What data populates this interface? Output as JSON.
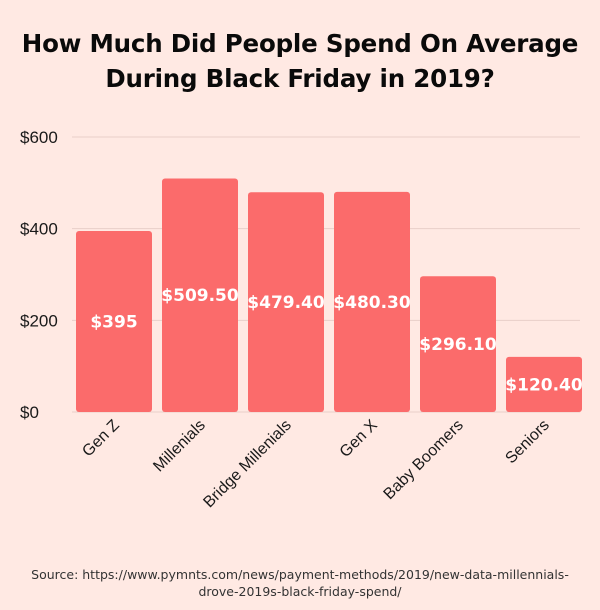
{
  "title_lines": [
    "How Much Did People Spend On Average",
    "During Black Friday in 2019?"
  ],
  "source_lines": [
    "Source: https://www.pymnts.com/news/payment-methods/2019/new-data-millennials-",
    "drove-2019s-black-friday-spend/"
  ],
  "colors": {
    "bar": "#fb6b6b",
    "grid": "#e8cfc8",
    "background": "#ffe9e3",
    "label": "#ffffff"
  },
  "chart_data": {
    "type": "bar",
    "title": "How Much Did People Spend On Average During Black Friday in 2019?",
    "categories": [
      "Gen Z",
      "Millenials",
      "Bridge Millenials",
      "Gen X",
      "Baby Boomers",
      "Seniors"
    ],
    "values": [
      395,
      509.5,
      479.4,
      480.3,
      296.1,
      120.4
    ],
    "value_labels": [
      "$395",
      "$509.50",
      "$479.40",
      "$480.30",
      "$296.10",
      "$120.40"
    ],
    "y_ticks": [
      0,
      200,
      400,
      600
    ],
    "y_tick_labels": [
      "$0",
      "$200",
      "$400",
      "$600"
    ],
    "ylim": [
      0,
      600
    ],
    "xlabel": "",
    "ylabel": "",
    "grid": true,
    "legend": "none"
  }
}
